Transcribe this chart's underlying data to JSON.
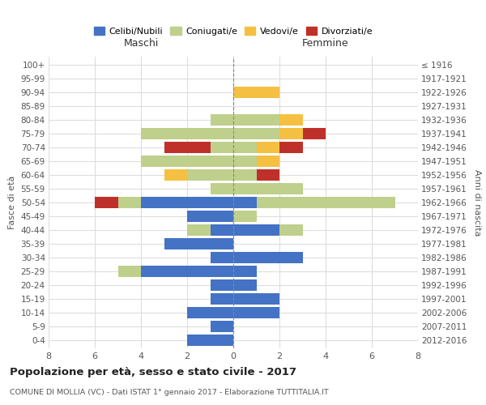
{
  "age_groups": [
    "0-4",
    "5-9",
    "10-14",
    "15-19",
    "20-24",
    "25-29",
    "30-34",
    "35-39",
    "40-44",
    "45-49",
    "50-54",
    "55-59",
    "60-64",
    "65-69",
    "70-74",
    "75-79",
    "80-84",
    "85-89",
    "90-94",
    "95-99",
    "100+"
  ],
  "birth_years": [
    "2012-2016",
    "2007-2011",
    "2002-2006",
    "1997-2001",
    "1992-1996",
    "1987-1991",
    "1982-1986",
    "1977-1981",
    "1972-1976",
    "1967-1971",
    "1962-1966",
    "1957-1961",
    "1952-1956",
    "1947-1951",
    "1942-1946",
    "1937-1941",
    "1932-1936",
    "1927-1931",
    "1922-1926",
    "1917-1921",
    "≤ 1916"
  ],
  "male": {
    "celibi": [
      2,
      1,
      2,
      1,
      1,
      4,
      1,
      3,
      1,
      2,
      4,
      0,
      0,
      0,
      0,
      0,
      0,
      0,
      0,
      0,
      0
    ],
    "coniugati": [
      0,
      0,
      0,
      0,
      0,
      1,
      0,
      0,
      1,
      0,
      1,
      1,
      2,
      4,
      1,
      4,
      1,
      0,
      0,
      0,
      0
    ],
    "vedovi": [
      0,
      0,
      0,
      0,
      0,
      0,
      0,
      0,
      0,
      0,
      0,
      0,
      1,
      0,
      0,
      0,
      0,
      0,
      0,
      0,
      0
    ],
    "divorziati": [
      0,
      0,
      0,
      0,
      0,
      0,
      0,
      0,
      0,
      0,
      1,
      0,
      0,
      0,
      2,
      0,
      0,
      0,
      0,
      0,
      0
    ]
  },
  "female": {
    "celibi": [
      0,
      0,
      2,
      2,
      1,
      1,
      3,
      0,
      2,
      0,
      1,
      0,
      0,
      0,
      0,
      0,
      0,
      0,
      0,
      0,
      0
    ],
    "coniugati": [
      0,
      0,
      0,
      0,
      0,
      0,
      0,
      0,
      1,
      1,
      6,
      3,
      1,
      1,
      1,
      2,
      2,
      0,
      0,
      0,
      0
    ],
    "vedovi": [
      0,
      0,
      0,
      0,
      0,
      0,
      0,
      0,
      0,
      0,
      0,
      0,
      0,
      1,
      1,
      1,
      1,
      0,
      2,
      0,
      0
    ],
    "divorziati": [
      0,
      0,
      0,
      0,
      0,
      0,
      0,
      0,
      0,
      0,
      0,
      0,
      1,
      0,
      1,
      1,
      0,
      0,
      0,
      0,
      0
    ]
  },
  "colors": {
    "celibi": "#4472C4",
    "coniugati": "#BFCF8C",
    "vedovi": "#F5C041",
    "divorziati": "#C0302A"
  },
  "xlim": 8,
  "title": "Popolazione per età, sesso e stato civile - 2017",
  "subtitle": "COMUNE DI MOLLIA (VC) - Dati ISTAT 1° gennaio 2017 - Elaborazione TUTTITALIA.IT",
  "ylabel_left": "Fasce di età",
  "ylabel_right": "Anni di nascita",
  "xlabel_left": "Maschi",
  "xlabel_right": "Femmine",
  "legend_labels": [
    "Celibi/Nubili",
    "Coniugati/e",
    "Vedovi/e",
    "Divorziati/e"
  ],
  "background_color": "#ffffff",
  "grid_color": "#dddddd"
}
